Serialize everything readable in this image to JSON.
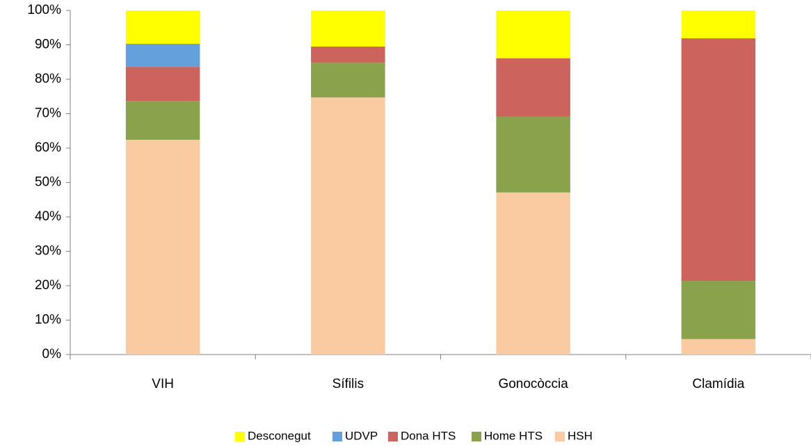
{
  "chart_data": {
    "type": "stacked_bar",
    "categories": [
      "VIH",
      "Sífilis",
      "Gonocòccia",
      "Clamídia"
    ],
    "series": [
      {
        "name": "Desconegut",
        "color": "#ffff00",
        "values": [
          9.7,
          10.5,
          13.9,
          8.1
        ]
      },
      {
        "name": "UDVP",
        "color": "#64a0dc",
        "values": [
          6.7,
          0,
          0,
          0
        ]
      },
      {
        "name": "Dona HTS",
        "color": "#cd635d",
        "values": [
          9.9,
          4.7,
          17.0,
          70.5
        ]
      },
      {
        "name": "Home HTS",
        "color": "#8ba24d",
        "values": [
          11.3,
          10.1,
          22.0,
          16.9
        ]
      },
      {
        "name": "HSH",
        "color": "#facba0",
        "values": [
          62.4,
          74.7,
          47.1,
          4.5
        ]
      }
    ],
    "ylim": [
      0,
      100
    ],
    "yticks": [
      {
        "value": 0,
        "label": "0%"
      },
      {
        "value": 10,
        "label": "10%"
      },
      {
        "value": 20,
        "label": "20%"
      },
      {
        "value": 30,
        "label": "30%"
      },
      {
        "value": 40,
        "label": "40%"
      },
      {
        "value": 50,
        "label": "50%"
      },
      {
        "value": 60,
        "label": "60%"
      },
      {
        "value": 70,
        "label": "70%"
      },
      {
        "value": 80,
        "label": "80%"
      },
      {
        "value": 90,
        "label": "90%"
      },
      {
        "value": 100,
        "label": "100%"
      }
    ],
    "legend": "bottom"
  }
}
